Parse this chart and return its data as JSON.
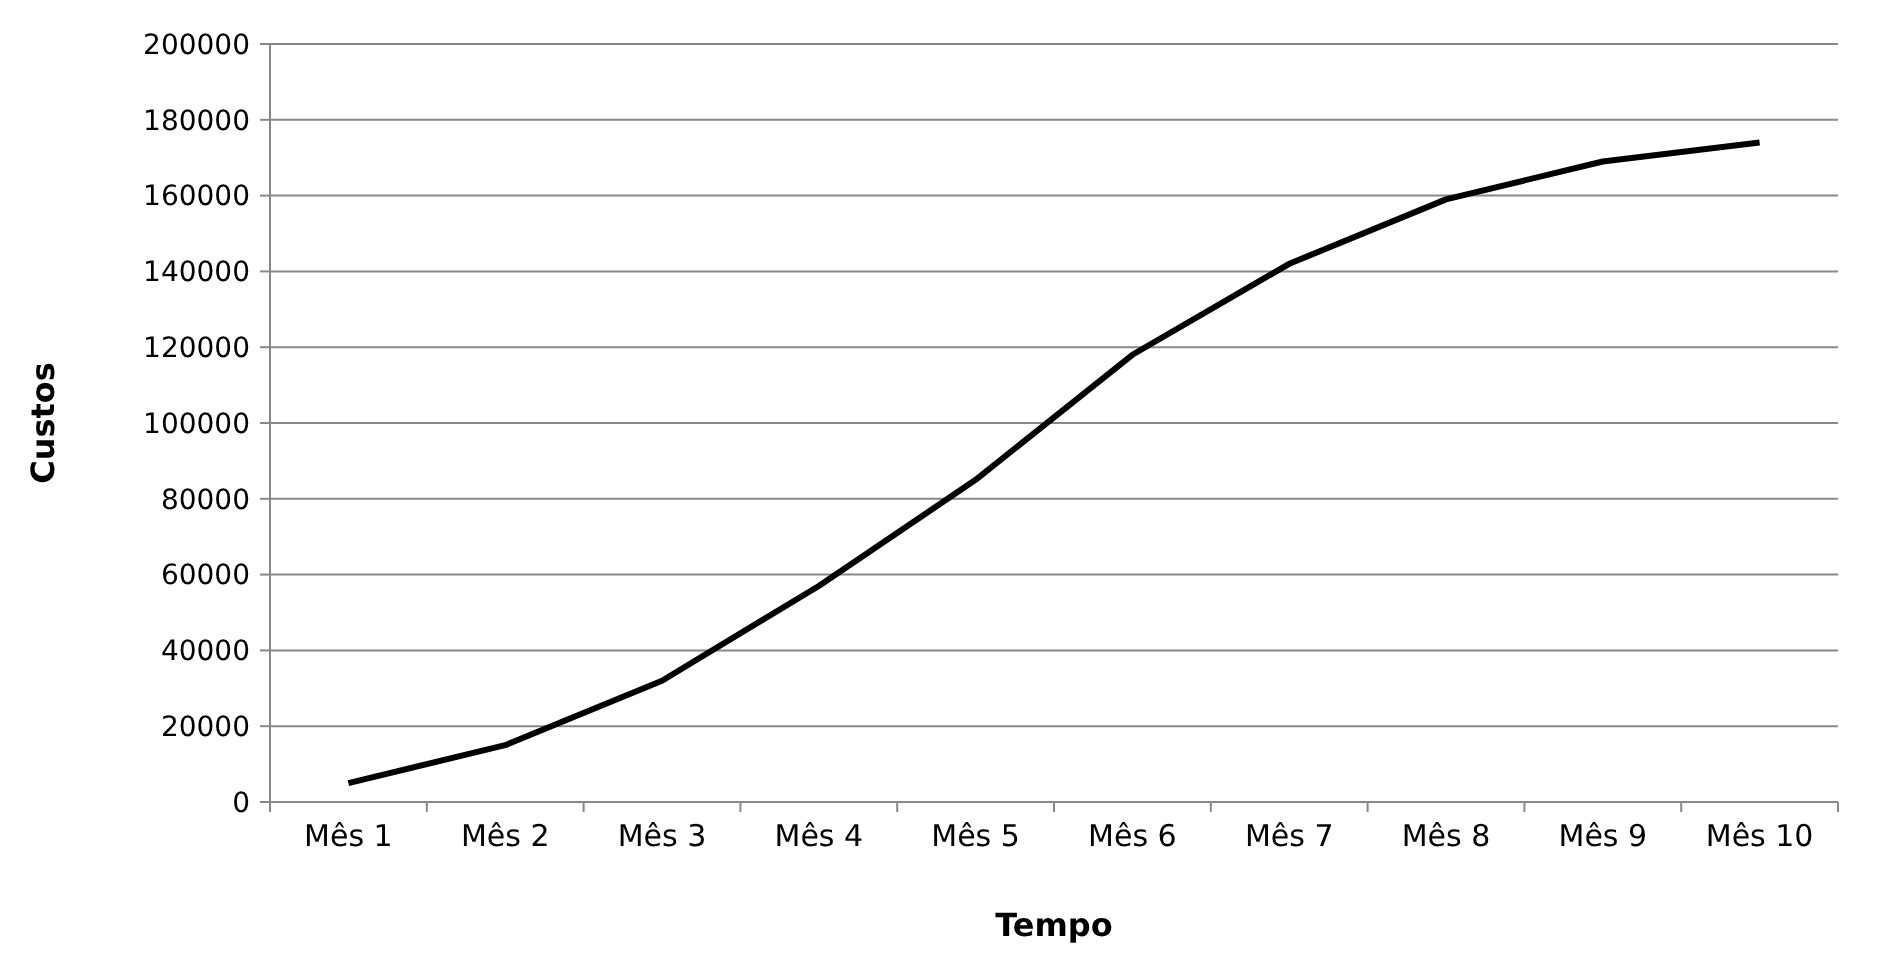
{
  "chart_data": {
    "type": "line",
    "xlabel": "Tempo",
    "ylabel": "Custos",
    "categories": [
      "Mês 1",
      "Mês 2",
      "Mês 3",
      "Mês 4",
      "Mês 5",
      "Mês 6",
      "Mês 7",
      "Mês 8",
      "Mês 9",
      "Mês 10"
    ],
    "series": [
      {
        "color": "#000000",
        "values": [
          5000,
          15000,
          32000,
          57000,
          85000,
          118000,
          142000,
          159000,
          169000,
          174000
        ]
      }
    ],
    "ylim": [
      0,
      200000
    ],
    "yticks": [
      0,
      20000,
      40000,
      60000,
      80000,
      100000,
      120000,
      140000,
      160000,
      180000,
      200000
    ],
    "grid": "y",
    "marker": "none",
    "line_style": "solid"
  }
}
